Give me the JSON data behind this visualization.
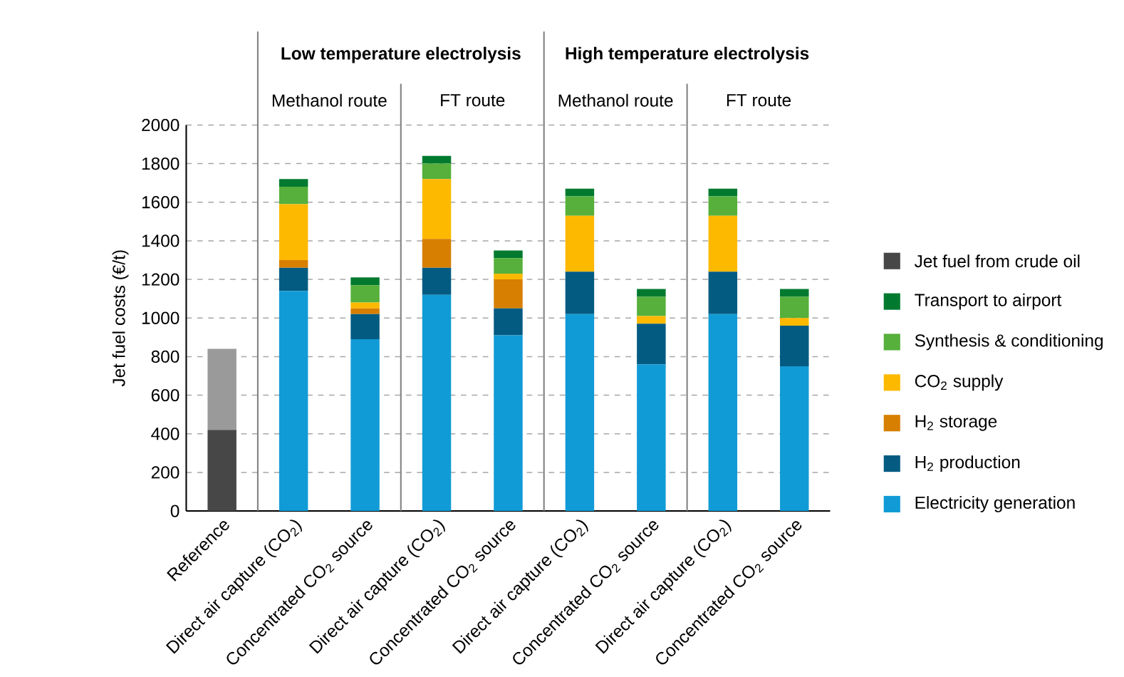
{
  "chart_data": {
    "type": "bar",
    "stacked": true,
    "ylabel": "Jet fuel costs (€/t)",
    "categories": [
      "Reference",
      "Direct air capture (CO$_{2}$)",
      "Concentrated CO$_{2}$ source",
      "Direct air capture (CO$_{2}$)",
      "Concentrated CO$_{2}$ source",
      "Direct air capture (CO$_{2}$)",
      "Concentrated CO$_{2}$ source",
      "Direct air capture (CO$_{2}$)",
      "Concentrated CO$_{2}$ source"
    ],
    "series": [
      {
        "name": "Electricity generation",
        "color": "#119bd6",
        "values": [
          0,
          1140,
          890,
          1120,
          910,
          1020,
          760,
          1020,
          750
        ]
      },
      {
        "name": "H$_{2}$ production",
        "color": "#035b82",
        "values": [
          0,
          120,
          130,
          140,
          140,
          220,
          210,
          220,
          210
        ]
      },
      {
        "name": "H$_{2}$ storage",
        "color": "#d77f00",
        "values": [
          0,
          40,
          30,
          150,
          150,
          0,
          0,
          0,
          0
        ]
      },
      {
        "name": "CO$_{2}$ supply",
        "color": "#fdb900",
        "values": [
          0,
          290,
          30,
          310,
          30,
          290,
          40,
          290,
          40
        ]
      },
      {
        "name": "Synthesis & conditioning",
        "color": "#56b03b",
        "values": [
          0,
          90,
          90,
          80,
          80,
          100,
          100,
          100,
          110
        ]
      },
      {
        "name": "Transport to airport",
        "color": "#017a2f",
        "values": [
          0,
          40,
          40,
          40,
          40,
          40,
          40,
          40,
          40
        ]
      },
      {
        "name": "Jet fuel from crude oil",
        "color": "#474747",
        "values": [
          420,
          0,
          0,
          0,
          0,
          0,
          0,
          0,
          0
        ]
      },
      {
        "color": "#9a9a9a",
        "values": [
          420,
          0,
          0,
          0,
          0,
          0,
          0,
          0,
          0
        ]
      }
    ],
    "ylim": [
      0,
      2000
    ],
    "yticks": [
      0,
      200,
      400,
      600,
      800,
      1000,
      1200,
      1400,
      1600,
      1800,
      2000
    ],
    "grid": "y",
    "legend": "right",
    "annotations": [
      "Low temperature electrolysis",
      "High temperature electrolysis",
      "Methanol route",
      "FT route",
      "Methanol route",
      "FT route"
    ]
  }
}
